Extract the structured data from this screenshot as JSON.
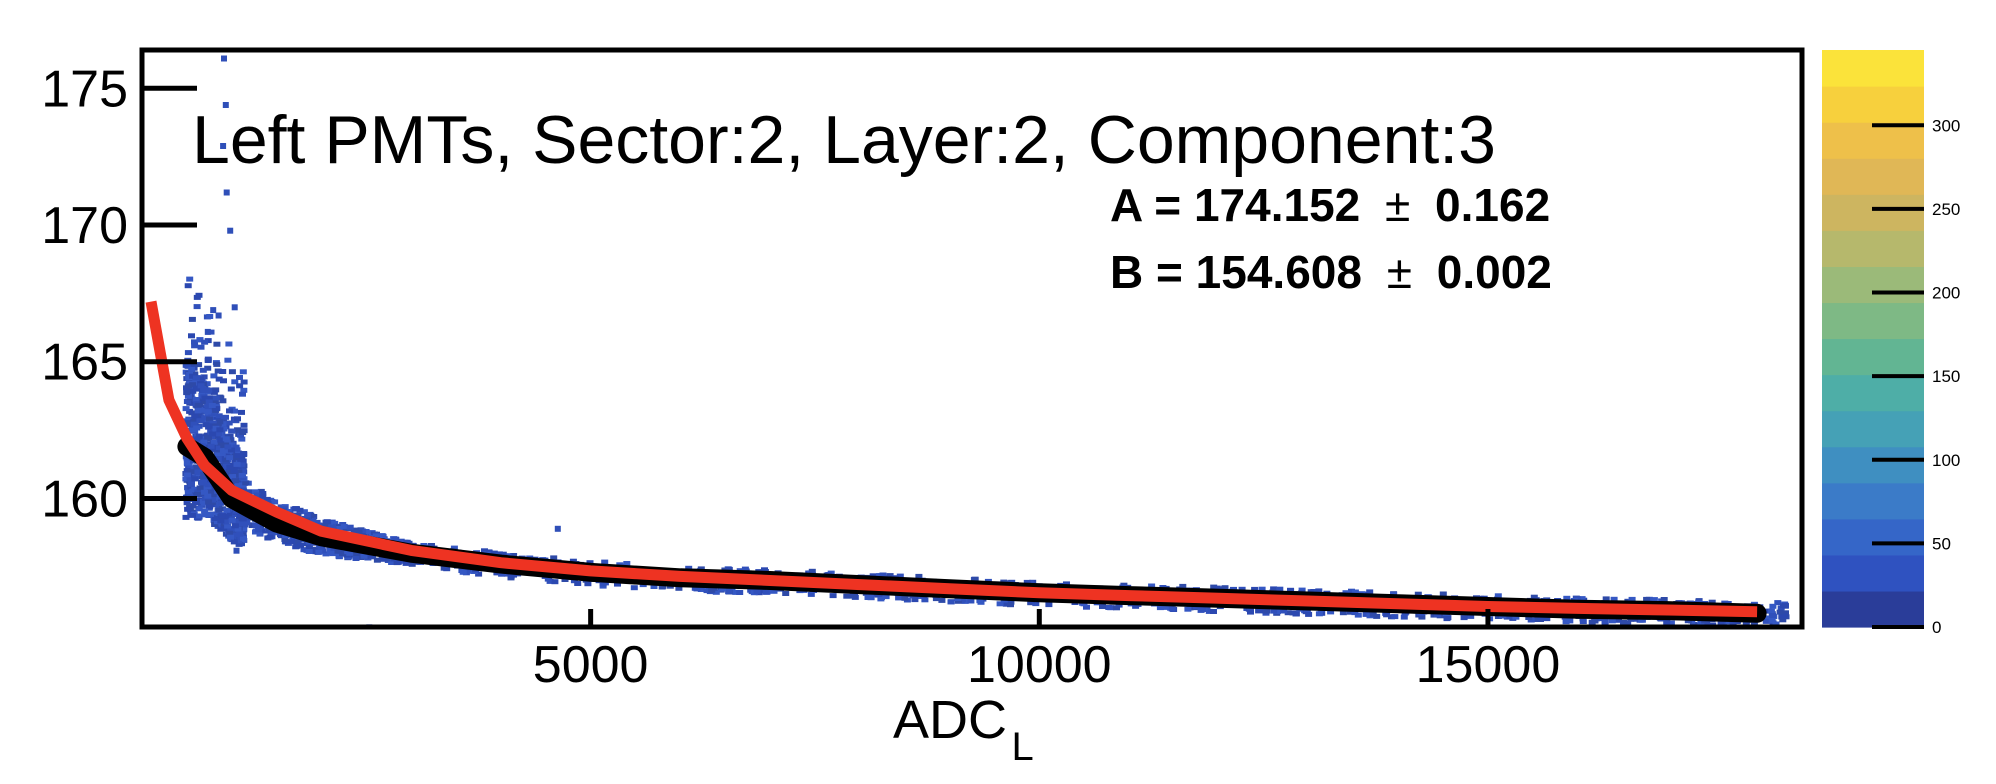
{
  "chart_data": {
    "type": "heatmap",
    "title": "Left PMTs, Sector:2, Layer:2, Component:3",
    "xlabel": "ADC",
    "xlabel_subscript": "L",
    "ylabel": "",
    "xlim": [
      0,
      18500
    ],
    "ylim": [
      155.3,
      176.4
    ],
    "x_ticks": [
      5000,
      10000,
      15000
    ],
    "x_tick_labels": [
      "5000",
      "10000",
      "15000"
    ],
    "y_ticks": [
      160,
      165,
      170,
      175
    ],
    "y_tick_labels": [
      "160",
      "165",
      "170",
      "175"
    ],
    "fit_params": [
      {
        "name": "A",
        "value": "174.152",
        "pm": "±",
        "error": "0.162"
      },
      {
        "name": "B",
        "value": "154.608",
        "pm": "±",
        "error": "0.002"
      }
    ],
    "colorbar": {
      "min": 0,
      "max": 345,
      "ticks": [
        0,
        50,
        100,
        150,
        200,
        250,
        300
      ],
      "tick_labels": [
        "0",
        "50",
        "100",
        "150",
        "200",
        "250",
        "300"
      ],
      "palette": [
        "#2a3d99",
        "#2f52c0",
        "#3566c8",
        "#3b7bc8",
        "#3f8fc1",
        "#45a1b6",
        "#4eaea7",
        "#62b593",
        "#7eb985",
        "#9bba79",
        "#b6b86c",
        "#cdb560",
        "#e0b756",
        "#eec04a",
        "#f7d03d",
        "#fbe33a"
      ]
    },
    "series": [
      {
        "kind": "profile",
        "color": "#000000",
        "points": [
          [
            500,
            161.9
          ],
          [
            700,
            161.5
          ],
          [
            1000,
            160.0
          ],
          [
            1500,
            159.1
          ],
          [
            2000,
            158.6
          ],
          [
            3000,
            158.0
          ],
          [
            4000,
            157.6
          ],
          [
            5000,
            157.3
          ],
          [
            6000,
            157.1
          ],
          [
            7000,
            157.0
          ],
          [
            8000,
            156.85
          ],
          [
            9000,
            156.7
          ],
          [
            10000,
            156.55
          ],
          [
            11000,
            156.45
          ],
          [
            12000,
            156.35
          ],
          [
            13000,
            156.25
          ],
          [
            14000,
            156.15
          ],
          [
            15000,
            156.05
          ],
          [
            16000,
            155.95
          ],
          [
            17000,
            155.9
          ],
          [
            18000,
            155.8
          ]
        ]
      },
      {
        "kind": "fit",
        "color": "#ee3322",
        "points": [
          [
            100,
            167.2
          ],
          [
            200,
            165.4
          ],
          [
            300,
            163.6
          ],
          [
            500,
            162.2
          ],
          [
            700,
            161.2
          ],
          [
            1000,
            160.3
          ],
          [
            1500,
            159.5
          ],
          [
            2000,
            158.8
          ],
          [
            3000,
            158.1
          ],
          [
            4000,
            157.65
          ],
          [
            5000,
            157.35
          ],
          [
            6000,
            157.15
          ],
          [
            7000,
            157.0
          ],
          [
            8000,
            156.85
          ],
          [
            9000,
            156.7
          ],
          [
            10000,
            156.55
          ],
          [
            11000,
            156.45
          ],
          [
            12000,
            156.35
          ],
          [
            13000,
            156.25
          ],
          [
            14000,
            156.15
          ],
          [
            15000,
            156.05
          ],
          [
            16000,
            155.98
          ],
          [
            17000,
            155.92
          ],
          [
            18000,
            155.86
          ]
        ]
      }
    ],
    "grid": false,
    "legend": "none"
  }
}
